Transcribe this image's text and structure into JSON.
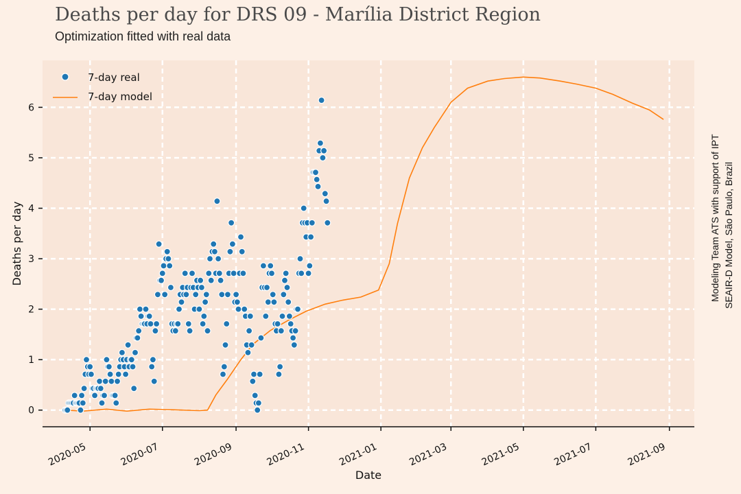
{
  "title": "Deaths per day for DRS 09 - Marília District Region",
  "subtitle": "Optimization fitted with real data",
  "credits": [
    "Modeling Team ATS with support of IPT",
    "SEAIR-D Model, São Paulo, Brazil"
  ],
  "colors": {
    "background": "#fdf0e6",
    "plot_bg": "#f9e6d9",
    "grid": "#ffffff",
    "real": "#1f77b4",
    "model": "#ff7f0e"
  },
  "chart_data": {
    "type": "line",
    "xlabel": "Date",
    "ylabel": "Deaths per day",
    "x_type": "date",
    "xlim": [
      "2020-03-22",
      "2021-09-22"
    ],
    "ylim": [
      -0.33,
      6.93
    ],
    "xticks": [
      "2020-05-01",
      "2020-07-01",
      "2020-09-01",
      "2020-11-01",
      "2021-01-01",
      "2021-03-01",
      "2021-05-01",
      "2021-07-01",
      "2021-09-01"
    ],
    "xtick_labels": [
      "2020-05",
      "2020-07",
      "2020-09",
      "2020-11",
      "2021-01",
      "2021-03",
      "2021-05",
      "2021-07",
      "2021-09"
    ],
    "yticks": [
      0,
      1,
      2,
      3,
      4,
      5,
      6
    ],
    "grid": true,
    "legend_position": "top-left",
    "series": [
      {
        "name": "7-day real",
        "style": "scatter",
        "points": [
          [
            "2020-04-10",
            0
          ],
          [
            "2020-04-11",
            0
          ],
          [
            "2020-04-12",
            0
          ],
          [
            "2020-04-13",
            0.14
          ],
          [
            "2020-04-14",
            0.14
          ],
          [
            "2020-04-15",
            0.14
          ],
          [
            "2020-04-16",
            0.14
          ],
          [
            "2020-04-17",
            0.14
          ],
          [
            "2020-04-18",
            0.29
          ],
          [
            "2020-04-19",
            0.14
          ],
          [
            "2020-04-20",
            0.14
          ],
          [
            "2020-04-21",
            0.14
          ],
          [
            "2020-04-22",
            0.14
          ],
          [
            "2020-04-23",
            0
          ],
          [
            "2020-04-24",
            0.29
          ],
          [
            "2020-04-25",
            0.14
          ],
          [
            "2020-04-26",
            0.43
          ],
          [
            "2020-04-27",
            0.71
          ],
          [
            "2020-04-28",
            1.0
          ],
          [
            "2020-04-29",
            0.86
          ],
          [
            "2020-04-30",
            0.71
          ],
          [
            "2020-05-01",
            0.86
          ],
          [
            "2020-05-02",
            0.71
          ],
          [
            "2020-05-03",
            0.43
          ],
          [
            "2020-05-04",
            0.43
          ],
          [
            "2020-05-05",
            0.29
          ],
          [
            "2020-05-06",
            0.43
          ],
          [
            "2020-05-07",
            0.43
          ],
          [
            "2020-05-08",
            0.43
          ],
          [
            "2020-05-09",
            0.57
          ],
          [
            "2020-05-10",
            0.43
          ],
          [
            "2020-05-11",
            0.14
          ],
          [
            "2020-05-12",
            0.29
          ],
          [
            "2020-05-13",
            0.29
          ],
          [
            "2020-05-14",
            0.57
          ],
          [
            "2020-05-15",
            1.0
          ],
          [
            "2020-05-16",
            0.86
          ],
          [
            "2020-05-17",
            0.86
          ],
          [
            "2020-05-18",
            0.71
          ],
          [
            "2020-05-19",
            0.57
          ],
          [
            "2020-05-20",
            0.29
          ],
          [
            "2020-05-21",
            0.29
          ],
          [
            "2020-05-22",
            0.29
          ],
          [
            "2020-05-23",
            0.14
          ],
          [
            "2020-05-24",
            0.57
          ],
          [
            "2020-05-25",
            0.71
          ],
          [
            "2020-05-26",
            0.86
          ],
          [
            "2020-05-27",
            1.0
          ],
          [
            "2020-05-28",
            1.14
          ],
          [
            "2020-05-29",
            1.0
          ],
          [
            "2020-05-30",
            0.86
          ],
          [
            "2020-05-31",
            0.71
          ],
          [
            "2020-06-01",
            1.0
          ],
          [
            "2020-06-02",
            1.29
          ],
          [
            "2020-06-03",
            0.86
          ],
          [
            "2020-06-04",
            1.0
          ],
          [
            "2020-06-05",
            1.0
          ],
          [
            "2020-06-06",
            0.86
          ],
          [
            "2020-06-07",
            0.43
          ],
          [
            "2020-06-08",
            1.14
          ],
          [
            "2020-06-09",
            1.43
          ],
          [
            "2020-06-10",
            1.43
          ],
          [
            "2020-06-11",
            1.57
          ],
          [
            "2020-06-12",
            2.0
          ],
          [
            "2020-06-13",
            1.86
          ],
          [
            "2020-06-14",
            1.71
          ],
          [
            "2020-06-15",
            1.71
          ],
          [
            "2020-06-16",
            1.71
          ],
          [
            "2020-06-17",
            2.0
          ],
          [
            "2020-06-18",
            1.71
          ],
          [
            "2020-06-19",
            1.86
          ],
          [
            "2020-06-20",
            1.86
          ],
          [
            "2020-06-21",
            1.71
          ],
          [
            "2020-06-22",
            0.86
          ],
          [
            "2020-06-23",
            1.0
          ],
          [
            "2020-06-24",
            0.57
          ],
          [
            "2020-06-25",
            1.57
          ],
          [
            "2020-06-26",
            1.71
          ],
          [
            "2020-06-27",
            2.29
          ],
          [
            "2020-06-28",
            3.29
          ],
          [
            "2020-06-29",
            2.57
          ],
          [
            "2020-06-30",
            2.57
          ],
          [
            "2020-07-01",
            2.71
          ],
          [
            "2020-07-02",
            2.86
          ],
          [
            "2020-07-03",
            2.29
          ],
          [
            "2020-07-04",
            3.0
          ],
          [
            "2020-07-05",
            3.14
          ],
          [
            "2020-07-06",
            3.0
          ],
          [
            "2020-07-07",
            2.86
          ],
          [
            "2020-07-08",
            2.43
          ],
          [
            "2020-07-09",
            1.71
          ],
          [
            "2020-07-10",
            1.57
          ],
          [
            "2020-07-11",
            1.71
          ],
          [
            "2020-07-12",
            1.57
          ],
          [
            "2020-07-13",
            1.71
          ],
          [
            "2020-07-14",
            1.71
          ],
          [
            "2020-07-15",
            2.0
          ],
          [
            "2020-07-16",
            2.29
          ],
          [
            "2020-07-17",
            2.14
          ],
          [
            "2020-07-18",
            2.43
          ],
          [
            "2020-07-19",
            2.29
          ],
          [
            "2020-07-20",
            2.71
          ],
          [
            "2020-07-21",
            2.29
          ],
          [
            "2020-07-22",
            2.43
          ],
          [
            "2020-07-23",
            1.71
          ],
          [
            "2020-07-24",
            1.57
          ],
          [
            "2020-07-25",
            2.43
          ],
          [
            "2020-07-26",
            2.71
          ],
          [
            "2020-07-27",
            2.43
          ],
          [
            "2020-07-28",
            2.0
          ],
          [
            "2020-07-29",
            2.29
          ],
          [
            "2020-07-30",
            2.57
          ],
          [
            "2020-07-31",
            2.43
          ],
          [
            "2020-08-01",
            2.0
          ],
          [
            "2020-08-02",
            2.57
          ],
          [
            "2020-08-03",
            2.43
          ],
          [
            "2020-08-04",
            1.71
          ],
          [
            "2020-08-05",
            1.86
          ],
          [
            "2020-08-06",
            2.14
          ],
          [
            "2020-08-07",
            2.29
          ],
          [
            "2020-08-08",
            1.57
          ],
          [
            "2020-08-09",
            2.71
          ],
          [
            "2020-08-10",
            3.0
          ],
          [
            "2020-08-11",
            2.57
          ],
          [
            "2020-08-12",
            3.14
          ],
          [
            "2020-08-13",
            3.29
          ],
          [
            "2020-08-14",
            3.14
          ],
          [
            "2020-08-15",
            2.71
          ],
          [
            "2020-08-16",
            4.14
          ],
          [
            "2020-08-17",
            3.0
          ],
          [
            "2020-08-18",
            2.71
          ],
          [
            "2020-08-19",
            2.57
          ],
          [
            "2020-08-20",
            2.29
          ],
          [
            "2020-08-21",
            0.71
          ],
          [
            "2020-08-22",
            0.86
          ],
          [
            "2020-08-23",
            1.29
          ],
          [
            "2020-08-24",
            1.71
          ],
          [
            "2020-08-25",
            2.29
          ],
          [
            "2020-08-26",
            2.71
          ],
          [
            "2020-08-27",
            3.14
          ],
          [
            "2020-08-28",
            3.71
          ],
          [
            "2020-08-29",
            3.29
          ],
          [
            "2020-08-30",
            2.71
          ],
          [
            "2020-08-31",
            2.14
          ],
          [
            "2020-09-01",
            2.29
          ],
          [
            "2020-09-02",
            2.14
          ],
          [
            "2020-09-03",
            2.0
          ],
          [
            "2020-09-04",
            2.71
          ],
          [
            "2020-09-05",
            3.43
          ],
          [
            "2020-09-06",
            3.14
          ],
          [
            "2020-09-07",
            2.71
          ],
          [
            "2020-09-08",
            2.0
          ],
          [
            "2020-09-09",
            1.86
          ],
          [
            "2020-09-10",
            1.29
          ],
          [
            "2020-09-11",
            1.14
          ],
          [
            "2020-09-12",
            1.57
          ],
          [
            "2020-09-13",
            1.86
          ],
          [
            "2020-09-14",
            1.29
          ],
          [
            "2020-09-15",
            0.57
          ],
          [
            "2020-09-16",
            0.71
          ],
          [
            "2020-09-17",
            0.29
          ],
          [
            "2020-09-18",
            0.14
          ],
          [
            "2020-09-19",
            0
          ],
          [
            "2020-09-20",
            0.14
          ],
          [
            "2020-09-21",
            0.71
          ],
          [
            "2020-09-22",
            1.43
          ],
          [
            "2020-09-23",
            2.43
          ],
          [
            "2020-09-24",
            2.86
          ],
          [
            "2020-09-25",
            2.43
          ],
          [
            "2020-09-26",
            1.86
          ],
          [
            "2020-09-27",
            2.43
          ],
          [
            "2020-09-28",
            2.14
          ],
          [
            "2020-09-29",
            2.71
          ],
          [
            "2020-09-30",
            2.86
          ],
          [
            "2020-10-01",
            2.71
          ],
          [
            "2020-10-02",
            2.29
          ],
          [
            "2020-10-03",
            2.14
          ],
          [
            "2020-10-04",
            1.71
          ],
          [
            "2020-10-05",
            1.57
          ],
          [
            "2020-10-06",
            1.71
          ],
          [
            "2020-10-07",
            0.71
          ],
          [
            "2020-10-08",
            0.86
          ],
          [
            "2020-10-09",
            1.57
          ],
          [
            "2020-10-10",
            1.86
          ],
          [
            "2020-10-11",
            2.29
          ],
          [
            "2020-10-12",
            2.57
          ],
          [
            "2020-10-13",
            2.71
          ],
          [
            "2020-10-14",
            2.43
          ],
          [
            "2020-10-15",
            2.14
          ],
          [
            "2020-10-16",
            1.86
          ],
          [
            "2020-10-17",
            1.71
          ],
          [
            "2020-10-18",
            1.57
          ],
          [
            "2020-10-19",
            1.43
          ],
          [
            "2020-10-20",
            1.29
          ],
          [
            "2020-10-21",
            1.57
          ],
          [
            "2020-10-22",
            2.0
          ],
          [
            "2020-10-23",
            2.0
          ],
          [
            "2020-10-24",
            2.71
          ],
          [
            "2020-10-25",
            3.0
          ],
          [
            "2020-10-26",
            2.71
          ],
          [
            "2020-10-27",
            3.71
          ],
          [
            "2020-10-28",
            4.0
          ],
          [
            "2020-10-29",
            3.71
          ],
          [
            "2020-10-30",
            3.43
          ],
          [
            "2020-10-31",
            3.71
          ],
          [
            "2020-11-01",
            2.71
          ],
          [
            "2020-11-02",
            2.86
          ],
          [
            "2020-11-03",
            3.43
          ],
          [
            "2020-11-04",
            3.71
          ],
          [
            "2020-11-05",
            4.71
          ],
          [
            "2020-11-06",
            4.71
          ],
          [
            "2020-11-07",
            4.71
          ],
          [
            "2020-11-08",
            4.57
          ],
          [
            "2020-11-09",
            4.43
          ],
          [
            "2020-11-10",
            5.14
          ],
          [
            "2020-11-11",
            5.29
          ],
          [
            "2020-11-12",
            6.14
          ],
          [
            "2020-11-13",
            5.0
          ],
          [
            "2020-11-14",
            5.14
          ],
          [
            "2020-11-15",
            4.29
          ],
          [
            "2020-11-16",
            4.14
          ],
          [
            "2020-11-17",
            3.71
          ]
        ]
      },
      {
        "name": "7-day model",
        "style": "line",
        "points": [
          [
            "2020-04-10",
            0.0
          ],
          [
            "2020-04-25",
            -0.02
          ],
          [
            "2020-05-15",
            0.02
          ],
          [
            "2020-06-01",
            -0.02
          ],
          [
            "2020-06-20",
            0.02
          ],
          [
            "2020-07-05",
            0.01
          ],
          [
            "2020-07-18",
            0.0
          ],
          [
            "2020-08-01",
            -0.01
          ],
          [
            "2020-08-08",
            0.0
          ],
          [
            "2020-08-15",
            0.3
          ],
          [
            "2020-08-25",
            0.62
          ],
          [
            "2020-09-05",
            1.0
          ],
          [
            "2020-09-15",
            1.3
          ],
          [
            "2020-09-30",
            1.58
          ],
          [
            "2020-10-15",
            1.78
          ],
          [
            "2020-10-30",
            1.96
          ],
          [
            "2020-11-15",
            2.1
          ],
          [
            "2020-11-30",
            2.18
          ],
          [
            "2020-12-15",
            2.24
          ],
          [
            "2020-12-30",
            2.38
          ],
          [
            "2021-01-08",
            2.9
          ],
          [
            "2021-01-15",
            3.7
          ],
          [
            "2021-01-25",
            4.6
          ],
          [
            "2021-02-05",
            5.2
          ],
          [
            "2021-02-15",
            5.6
          ],
          [
            "2021-03-01",
            6.1
          ],
          [
            "2021-03-15",
            6.38
          ],
          [
            "2021-04-01",
            6.52
          ],
          [
            "2021-04-15",
            6.57
          ],
          [
            "2021-05-01",
            6.6
          ],
          [
            "2021-05-15",
            6.58
          ],
          [
            "2021-06-01",
            6.52
          ],
          [
            "2021-06-15",
            6.46
          ],
          [
            "2021-07-01",
            6.38
          ],
          [
            "2021-07-15",
            6.26
          ],
          [
            "2021-08-01",
            6.08
          ],
          [
            "2021-08-15",
            5.95
          ],
          [
            "2021-08-27",
            5.76
          ]
        ]
      }
    ]
  }
}
